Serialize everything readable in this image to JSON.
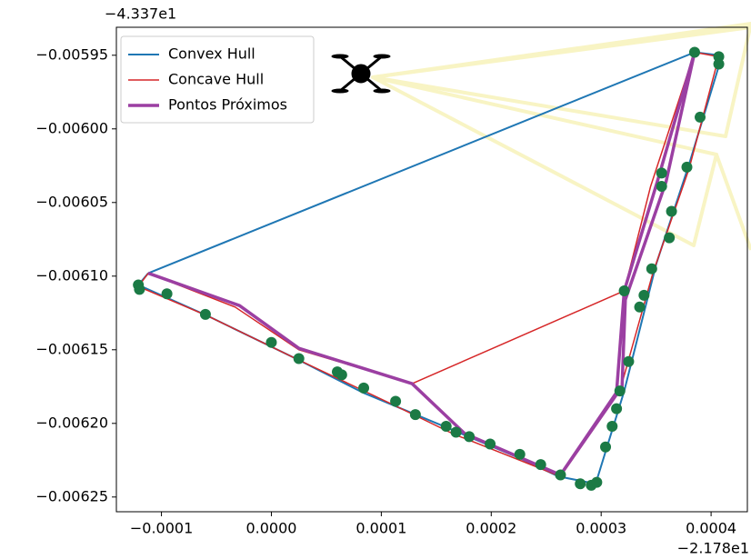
{
  "chart_data": {
    "type": "line",
    "y_offset_label": "−4.337e1",
    "x_offset_label": "−2.178e1",
    "xlim": [
      -0.000141,
      0.000433
    ],
    "ylim": [
      -0.00626,
      -0.005931
    ],
    "xticks": [
      {
        "value": -0.0001,
        "label": "−0.0001"
      },
      {
        "value": 0,
        "label": "0.0000"
      },
      {
        "value": 0.0001,
        "label": "0.0001"
      },
      {
        "value": 0.0002,
        "label": "0.0002"
      },
      {
        "value": 0.0003,
        "label": "0.0003"
      },
      {
        "value": 0.0004,
        "label": "0.0004"
      }
    ],
    "yticks": [
      {
        "value": -0.00595,
        "label": "−0.00595"
      },
      {
        "value": -0.006,
        "label": "−0.00600"
      },
      {
        "value": -0.00605,
        "label": "−0.00605"
      },
      {
        "value": -0.0061,
        "label": "−0.00610"
      },
      {
        "value": -0.00615,
        "label": "−0.00615"
      },
      {
        "value": -0.0062,
        "label": "−0.00620"
      },
      {
        "value": -0.00625,
        "label": "−0.00625"
      }
    ],
    "grid": false,
    "legend": "upper left",
    "series": [
      {
        "name": "Convex Hull",
        "color": "#1f77b4",
        "width": 2,
        "x": [
          -0.000112,
          0.000385,
          0.000407,
          0.000408,
          0.00038,
          0.00035,
          0.000321,
          0.000295,
          0.000261,
          0.000227,
          0.000157,
          8.3e-05,
          2.5e-05,
          -5.8e-05,
          -0.000109,
          -0.000121,
          -0.000112
        ],
        "values": [
          -0.006098,
          -0.005948,
          -0.00595,
          -0.005955,
          -0.006024,
          -0.006092,
          -0.006178,
          -0.006241,
          -0.006236,
          -0.006224,
          -0.006202,
          -0.006179,
          -0.006157,
          -0.006127,
          -0.00611,
          -0.006106,
          -0.006098
        ]
      },
      {
        "name": "Concave Hull",
        "color": "#d62728",
        "width": 1.5,
        "x": [
          -0.000112,
          -3.3e-05,
          2.5e-05,
          0.000128,
          0.000321,
          0.000345,
          0.000385,
          0.000407,
          0.00038,
          0.000347,
          0.000317,
          0.000263,
          0.000165,
          0.000107,
          2.5e-05,
          -5.8e-05,
          -0.000121,
          -0.000112
        ],
        "values": [
          -0.006098,
          -0.006121,
          -0.00615,
          -0.006173,
          -0.00611,
          -0.006039,
          -0.005948,
          -0.005951,
          -0.006027,
          -0.006098,
          -0.006178,
          -0.006236,
          -0.006207,
          -0.006186,
          -0.006157,
          -0.006127,
          -0.006107,
          -0.006098
        ]
      },
      {
        "name": "Pontos Próximos",
        "color": "#9b3fa2",
        "width": 3.5,
        "x": [
          -0.000112,
          -2.9e-05,
          2.5e-05,
          0.000128,
          0.000176,
          0.000263,
          0.000314,
          0.000321,
          0.000351,
          0.000385,
          0.000359,
          0.000322,
          0.000319,
          0.000263
        ],
        "values": [
          -0.006098,
          -0.00612,
          -0.006149,
          -0.006173,
          -0.006207,
          -0.006235,
          -0.006179,
          -0.00611,
          -0.006036,
          -0.005948,
          -0.006036,
          -0.006116,
          -0.006175,
          -0.006235
        ]
      }
    ],
    "points": {
      "color": "#1b7a45",
      "x": [
        -0.000121,
        -0.00012,
        -9.5e-05,
        -6e-05,
        0,
        2.5e-05,
        6e-05,
        6.4e-05,
        8.4e-05,
        0.000113,
        0.000131,
        0.000159,
        0.000168,
        0.00018,
        0.000199,
        0.000226,
        0.000245,
        0.000281,
        0.000291,
        0.000296,
        0.000263,
        0.000304,
        0.00031,
        0.000314,
        0.000317,
        0.000325,
        0.000335,
        0.000339,
        0.000321,
        0.000346,
        0.000355,
        0.000355,
        0.000364,
        0.000362,
        0.000378,
        0.00039,
        0.000385,
        0.000407,
        0.000407
      ],
      "values": [
        -0.006106,
        -0.006109,
        -0.006112,
        -0.006126,
        -0.006145,
        -0.006156,
        -0.006165,
        -0.006167,
        -0.006176,
        -0.006185,
        -0.006194,
        -0.006202,
        -0.006206,
        -0.006209,
        -0.006214,
        -0.006221,
        -0.006228,
        -0.006241,
        -0.006242,
        -0.00624,
        -0.006235,
        -0.006216,
        -0.006202,
        -0.00619,
        -0.006178,
        -0.006158,
        -0.006121,
        -0.006113,
        -0.00611,
        -0.006095,
        -0.006039,
        -0.00603,
        -0.006056,
        -0.006074,
        -0.006026,
        -0.005992,
        -0.005948,
        -0.005951,
        -0.005956
      ]
    }
  }
}
